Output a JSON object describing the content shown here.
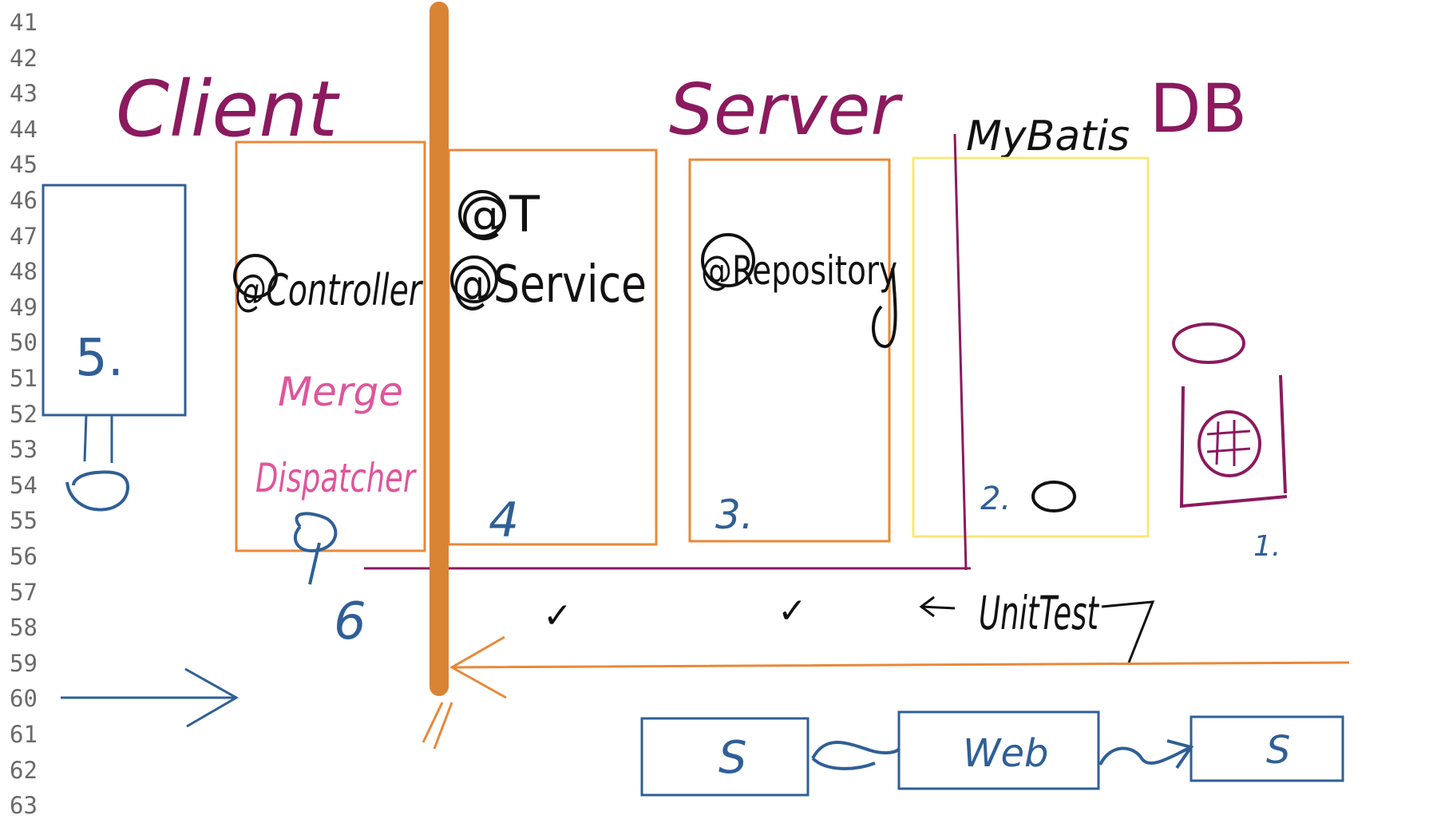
{
  "editor": {
    "line_numbers": [
      "41",
      "42",
      "43",
      "44",
      "45",
      "46",
      "47",
      "48",
      "49",
      "50",
      "51",
      "52",
      "53",
      "54",
      "55",
      "56",
      "57",
      "58",
      "59",
      "60",
      "61",
      "62",
      "63"
    ]
  },
  "colors": {
    "purple": "#8b1a5e",
    "orange": "#e8883a",
    "orange_bar": "#d98334",
    "blue": "#2f5f96",
    "yellow": "#f7e87a",
    "pink": "#e0559b",
    "black": "#111111"
  },
  "headings": {
    "client": "Client",
    "server": "Server",
    "mybatis": "MyBatis",
    "db": "DB"
  },
  "boxes": {
    "client_box_label": "5.",
    "controller_label": "@Controller",
    "merge_label": "Merge",
    "dispatcher_label": "Dispatcher",
    "t_label": "@T",
    "service_label": "@Service",
    "repository_label": "@Repository",
    "mybatis_box_label": "2.",
    "service_box_number": "4",
    "repository_box_number": "3.",
    "db_label": "1."
  },
  "annotations": {
    "six": "6",
    "check_service": "✓",
    "check_repository": "✓",
    "unittest": "UnitTest"
  },
  "bottom_boxes": {
    "left": "S",
    "middle": "Web",
    "right": "S"
  }
}
